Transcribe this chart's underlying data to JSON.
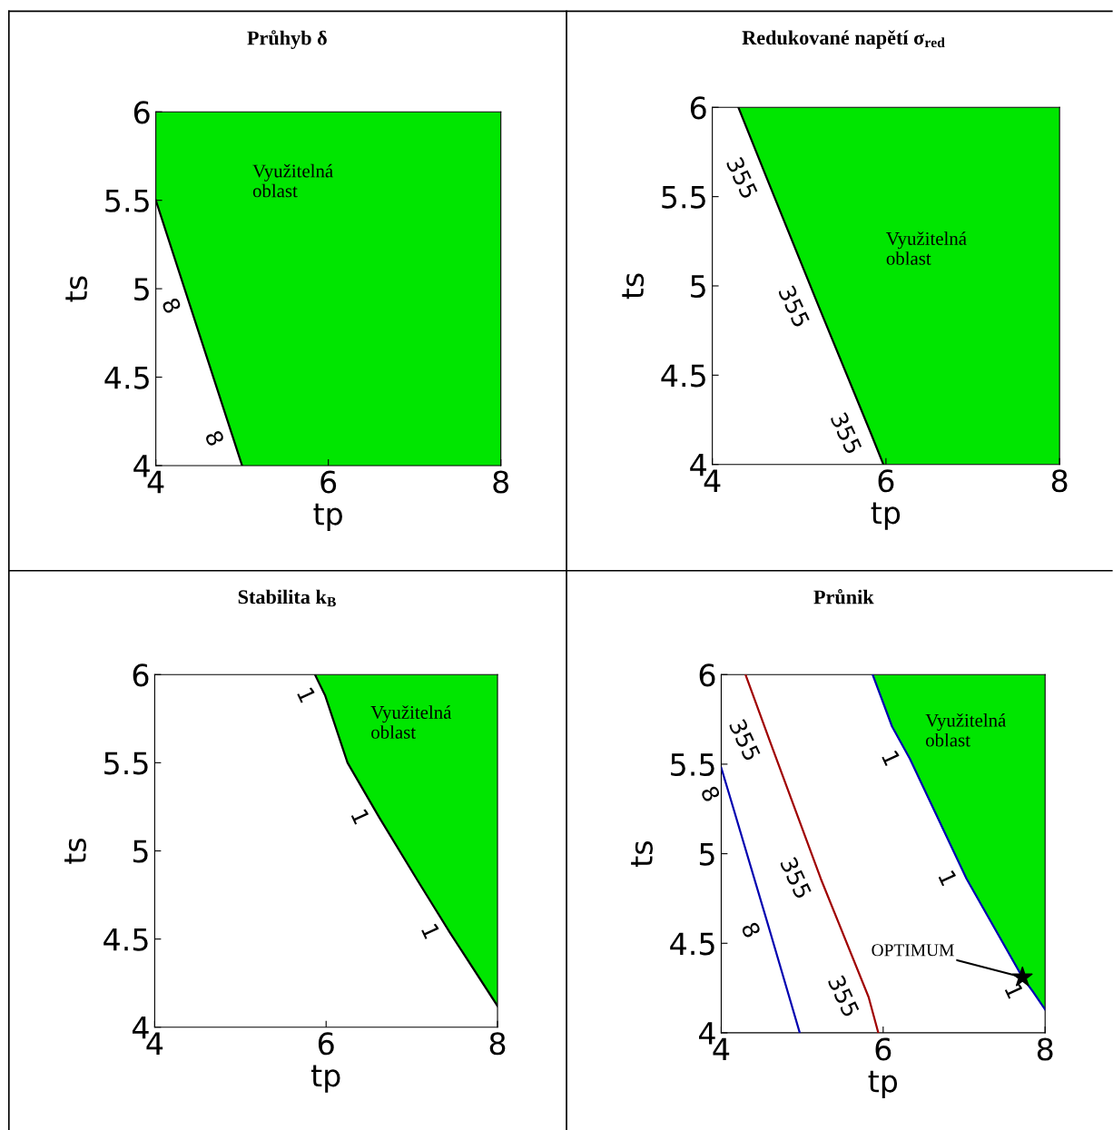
{
  "chart_data": [
    {
      "type": "line",
      "title": "Průhyb δ",
      "xlabel": "tp",
      "ylabel": "ts",
      "xlim": [
        4,
        8
      ],
      "ylim": [
        4,
        6
      ],
      "xticks": [
        4,
        6,
        8
      ],
      "yticks": [
        4,
        4.5,
        5,
        5.5,
        6
      ],
      "bands": [
        {
          "axis": "x",
          "from": 4,
          "to": 8,
          "color": "#00e600"
        }
      ],
      "series": [
        {
          "color": "#000000",
          "x": [
            4,
            4.4,
            4.9,
            5
          ],
          "values": [
            5.5,
            4.9,
            4.15,
            4
          ]
        }
      ],
      "annotations": [
        "Využitelná\noblast",
        {
          "text": "8",
          "x": 4.4,
          "y": 4.9
        },
        {
          "text": "8",
          "x": 4.9,
          "y": 4.15
        }
      ]
    },
    {
      "type": "line",
      "title": "Redukované napětí σ$_{red}$",
      "xlabel": "tp",
      "ylabel": "ts",
      "xlim": [
        4,
        8
      ],
      "ylim": [
        4,
        6
      ],
      "xticks": [
        4,
        6,
        8
      ],
      "yticks": [
        4,
        4.5,
        5,
        5.5,
        6
      ],
      "bands": [
        {
          "axis": "x",
          "from": 4.3,
          "to": 8,
          "color": "#00e600"
        }
      ],
      "series": [
        {
          "color": "#000000",
          "x": [
            4.3,
            4.63,
            5.23,
            5.83,
            5.97
          ],
          "values": [
            6,
            5.6,
            4.88,
            4.17,
            4
          ]
        }
      ],
      "annotations": [
        "Využitelná\noblast",
        {
          "text": "355",
          "x": 4.63,
          "y": 5.6
        },
        {
          "text": "355",
          "x": 5.23,
          "y": 4.88
        },
        {
          "text": "355",
          "x": 5.83,
          "y": 4.17
        }
      ]
    },
    {
      "type": "line",
      "title": "Stabilita k$_{B}$",
      "xlabel": "tp",
      "ylabel": "ts",
      "xlim": [
        4,
        8
      ],
      "ylim": [
        4,
        6
      ],
      "xticks": [
        4,
        6,
        8
      ],
      "yticks": [
        4,
        4.5,
        5,
        5.5,
        6
      ],
      "bands": [
        {
          "axis": "x",
          "from": 5.87,
          "to": 8,
          "color": "#00e600"
        }
      ],
      "series": [
        {
          "color": "#000000",
          "x": [
            5.87,
            5.99,
            6.25,
            6.62,
            7.07,
            7.44,
            8
          ],
          "values": [
            6,
            5.88,
            5.5,
            5.19,
            4.83,
            4.54,
            4.12
          ]
        }
      ],
      "annotations": [
        "Využitelná\noblast",
        {
          "text": "1",
          "x": 5.99,
          "y": 5.88
        },
        {
          "text": "1",
          "x": 6.62,
          "y": 5.19
        },
        {
          "text": "1",
          "x": 7.44,
          "y": 4.54
        }
      ]
    },
    {
      "type": "line",
      "title": "Průnik",
      "xlabel": "tp",
      "ylabel": "ts",
      "xlim": [
        4,
        8
      ],
      "ylim": [
        4,
        6
      ],
      "xticks": [
        4,
        6,
        8
      ],
      "yticks": [
        4,
        4.5,
        5,
        5.5,
        6
      ],
      "bands": [
        {
          "axis": "x",
          "from": 5.87,
          "to": 8,
          "color": "#00e600"
        }
      ],
      "series": [
        {
          "color": "#0000b0",
          "x": [
            5.87,
            6.11,
            6.33,
            7.03,
            7.72,
            7.85,
            8
          ],
          "values": [
            6,
            5.71,
            5.53,
            4.86,
            4.31,
            4.23,
            4.13
          ]
        },
        {
          "color": "#0000b0",
          "x": [
            4,
            4.1,
            4.6,
            4.97
          ],
          "values": [
            5.48,
            5.33,
            4.57,
            4
          ]
        },
        {
          "color": "#a00000",
          "x": [
            4.3,
            4.6,
            5.23,
            5.82,
            5.94
          ],
          "values": [
            6,
            5.63,
            4.86,
            4.2,
            4
          ]
        },
        {
          "type": "scatter",
          "color": "#000000",
          "marker": "star",
          "x": [
            7.72
          ],
          "values": [
            4.31
          ]
        }
      ],
      "annotations": [
        "Využitelná\noblast",
        {
          "text": "8",
          "x": 4.1,
          "y": 5.33
        },
        {
          "text": "8",
          "x": 4.6,
          "y": 4.57
        },
        {
          "text": "355",
          "x": 4.6,
          "y": 5.63
        },
        {
          "text": "355",
          "x": 5.23,
          "y": 4.86
        },
        {
          "text": "355",
          "x": 5.82,
          "y": 4.2
        },
        {
          "text": "1",
          "x": 6.33,
          "y": 5.53
        },
        {
          "text": "1",
          "x": 7.03,
          "y": 4.86
        },
        {
          "text": "1",
          "x": 7.85,
          "y": 4.23
        },
        {
          "text": "OPTIMUM",
          "x": 7.72,
          "y": 4.31
        }
      ]
    }
  ]
}
